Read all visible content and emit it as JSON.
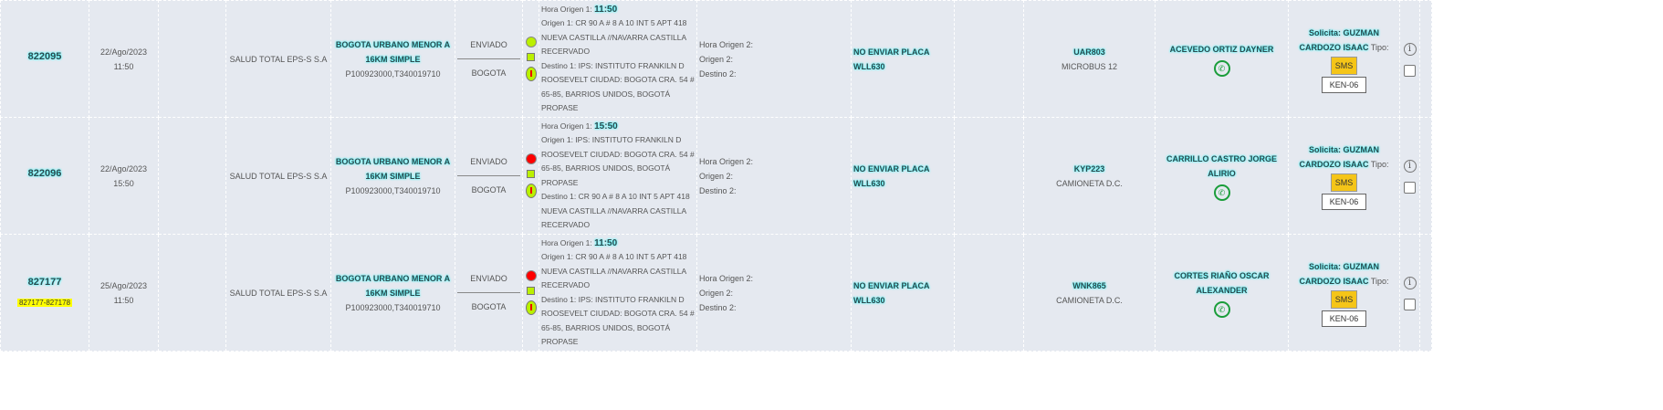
{
  "rows": [
    {
      "id": "822095",
      "extra": "",
      "date": "22/Ago/2023",
      "time": "11:50",
      "client": "SALUD TOTAL EPS-S S.A",
      "service": "BOGOTA URBANO MENOR A 16KM SIMPLE",
      "codes": "P100923000,T340019710",
      "status": "ENVIADO",
      "city": "BOGOTA",
      "dot_color": "#bbf000",
      "hora1_label": "Hora Origen 1:",
      "hora1": "11:50",
      "origen1": "Origen 1: CR 90 A # 8 A 10 INT 5 APT 418 NUEVA CASTILLA //NAVARRA CASTILLA RECERVADO",
      "destino1": "Destino 1: IPS: INSTITUTO FRANKILN D ROOSEVELT CIUDAD: BOGOTA CRA. 54 # 65-85, BARRIOS UNIDOS, BOGOTÁ PROPASE",
      "hora2": "Hora Origen 2:",
      "origen2": "Origen 2:",
      "destino2": "Destino 2:",
      "note": "NO ENVIAR PLACA WLL630",
      "plate": "UAR803",
      "vehicle": "MICROBUS 12",
      "driver": "ACEVEDO ORTIZ DAYNER",
      "solicita": "Solicita: GUZMAN CARDOZO ISAAC",
      "tipo": "Tipo:",
      "sms": "SMS",
      "ken": "KEN-06"
    },
    {
      "id": "822096",
      "extra": "",
      "date": "22/Ago/2023",
      "time": "15:50",
      "client": "SALUD TOTAL EPS-S S.A",
      "service": "BOGOTA URBANO MENOR A 16KM SIMPLE",
      "codes": "P100923000,T340019710",
      "status": "ENVIADO",
      "city": "BOGOTA",
      "dot_color": "#ff0000",
      "hora1_label": "Hora Origen 1:",
      "hora1": "15:50",
      "origen1": "Origen 1: IPS: INSTITUTO FRANKILN D ROOSEVELT CIUDAD: BOGOTA CRA. 54 # 65-85, BARRIOS UNIDOS, BOGOTÁ PROPASE",
      "destino1": "Destino 1: CR 90 A # 8 A 10 INT 5 APT 418 NUEVA CASTILLA //NAVARRA CASTILLA RECERVADO",
      "hora2": "Hora Origen 2:",
      "origen2": "Origen 2:",
      "destino2": "Destino 2:",
      "note": "NO ENVIAR PLACA WLL630",
      "plate": "KYP223",
      "vehicle": "CAMIONETA D.C.",
      "driver": "CARRILLO CASTRO JORGE ALIRIO",
      "solicita": "Solicita: GUZMAN CARDOZO ISAAC",
      "tipo": "Tipo:",
      "sms": "SMS",
      "ken": "KEN-06"
    },
    {
      "id": "827177",
      "extra": "827177-827178",
      "date": "25/Ago/2023",
      "time": "11:50",
      "client": "SALUD TOTAL EPS-S S.A",
      "service": "BOGOTA URBANO MENOR A 16KM SIMPLE",
      "codes": "P100923000,T340019710",
      "status": "ENVIADO",
      "city": "BOGOTA",
      "dot_color": "#ff0000",
      "hora1_label": "Hora Origen 1:",
      "hora1": "11:50",
      "origen1": "Origen 1: CR 90 A # 8 A 10 INT 5 APT 418 NUEVA CASTILLA //NAVARRA CASTILLA RECERVADO",
      "destino1": "Destino 1: IPS: INSTITUTO FRANKILN D ROOSEVELT CIUDAD: BOGOTA CRA. 54 # 65-85, BARRIOS UNIDOS, BOGOTÁ PROPASE",
      "hora2": "Hora Origen 2:",
      "origen2": "Origen 2:",
      "destino2": "Destino 2:",
      "note": "NO ENVIAR PLACA WLL630",
      "plate": "WNK865",
      "vehicle": "CAMIONETA D.C.",
      "driver": "CORTES RIAÑO OSCAR ALEXANDER",
      "solicita": "Solicita: GUZMAN CARDOZO ISAAC",
      "tipo": "Tipo:",
      "sms": "SMS",
      "ken": "KEN-06"
    }
  ]
}
